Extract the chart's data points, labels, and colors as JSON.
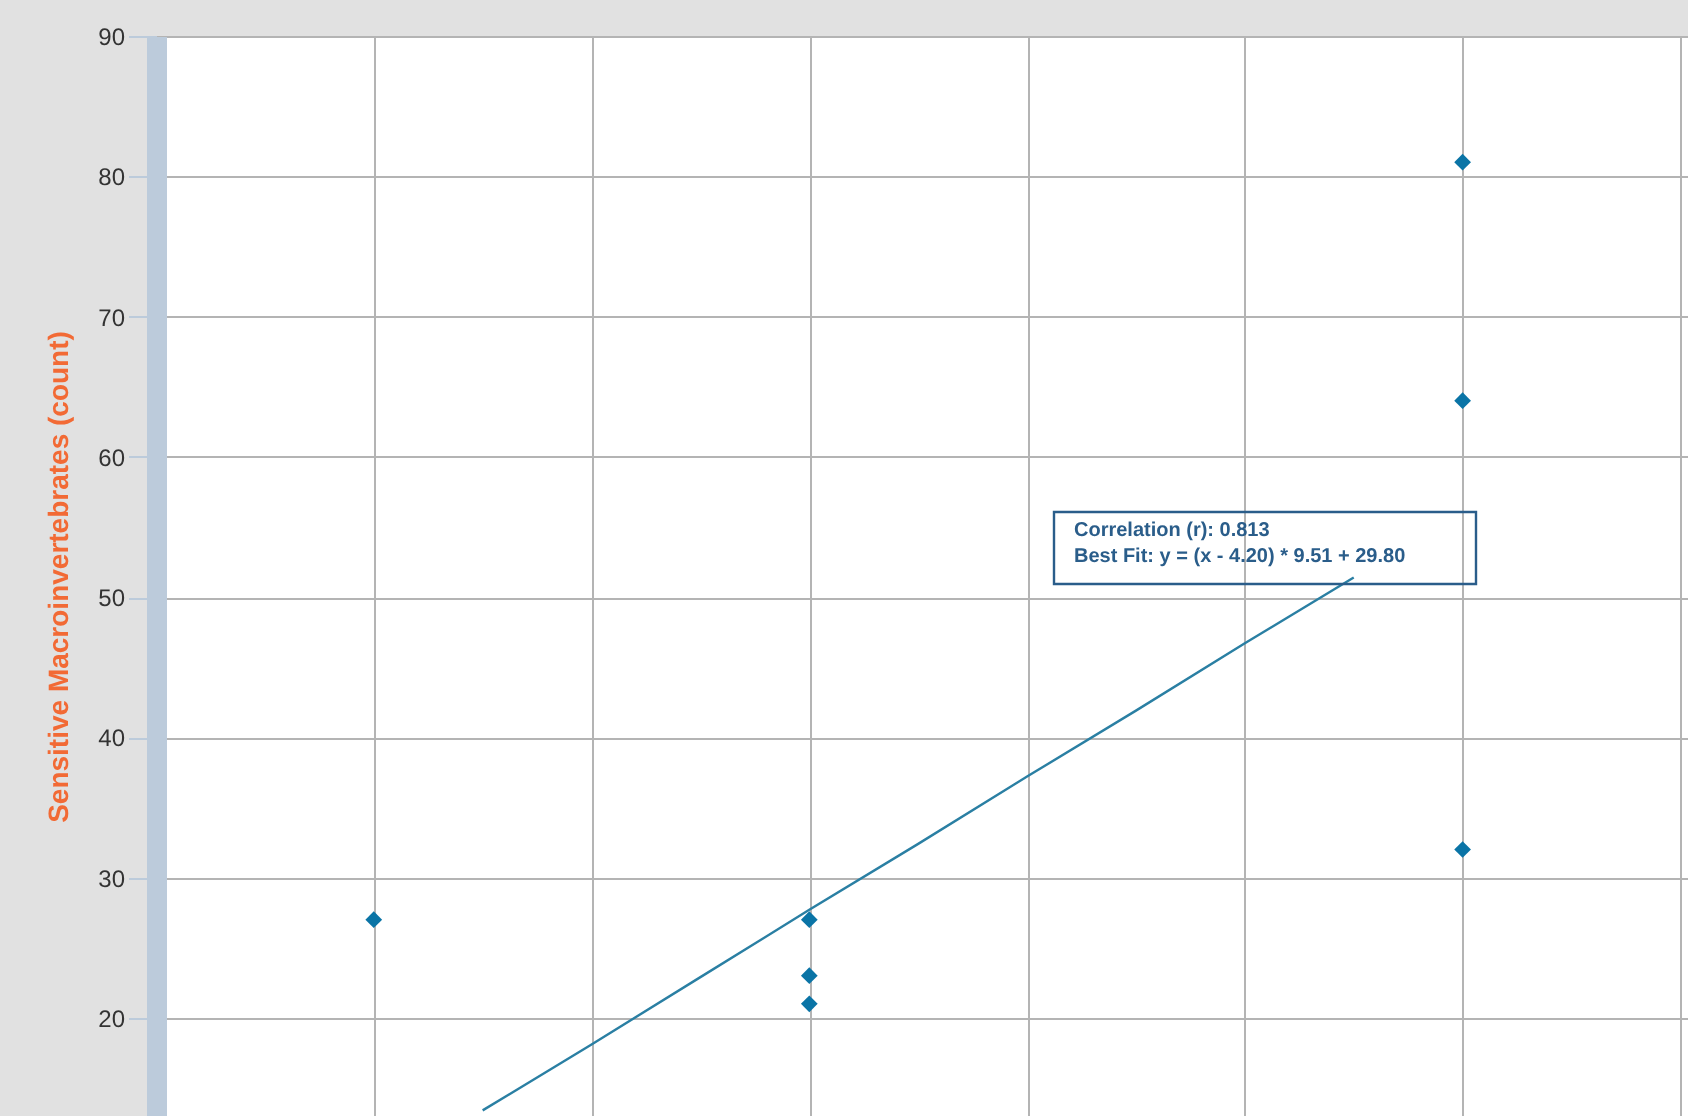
{
  "chart_data": {
    "type": "scatter",
    "ylabel": "Sensitive Macroinvertebrates (count)",
    "categories": [
      null,
      null,
      null,
      null,
      null,
      null,
      null,
      null,
      null,
      null,
      null,
      null,
      null,
      null,
      null
    ],
    "ylim": [
      13,
      90
    ],
    "yticks": [
      20,
      30,
      40,
      50,
      60,
      70,
      80,
      90
    ],
    "tick_labels": "y",
    "grid": true,
    "legend": false,
    "marker": "diamond",
    "series": [
      {
        "color": "#0a74a6",
        "values": [
          null,
          null,
          27,
          null,
          null,
          null,
          27,
          null,
          null,
          null,
          null,
          null,
          81,
          null,
          null
        ]
      },
      {
        "color": "#0a74a6",
        "values": [
          null,
          null,
          null,
          null,
          null,
          null,
          23,
          null,
          null,
          null,
          null,
          null,
          64,
          null,
          null
        ]
      },
      {
        "color": "#0a74a6",
        "values": [
          null,
          null,
          null,
          null,
          null,
          null,
          21,
          null,
          null,
          null,
          null,
          null,
          32,
          null,
          null
        ]
      },
      {
        "type": "line",
        "color": "#2a7fa3",
        "marker": "none",
        "values": [
          null,
          null,
          null,
          13.4,
          18.1,
          22.9,
          27.7,
          32.4,
          37.2,
          41.9,
          46.7,
          51.4,
          null,
          null,
          null
        ]
      }
    ],
    "annotations": [
      "Correlation (r): 0.813",
      "Best Fit: y = (x - 4.20) * 9.51 + 29.80"
    ]
  }
}
